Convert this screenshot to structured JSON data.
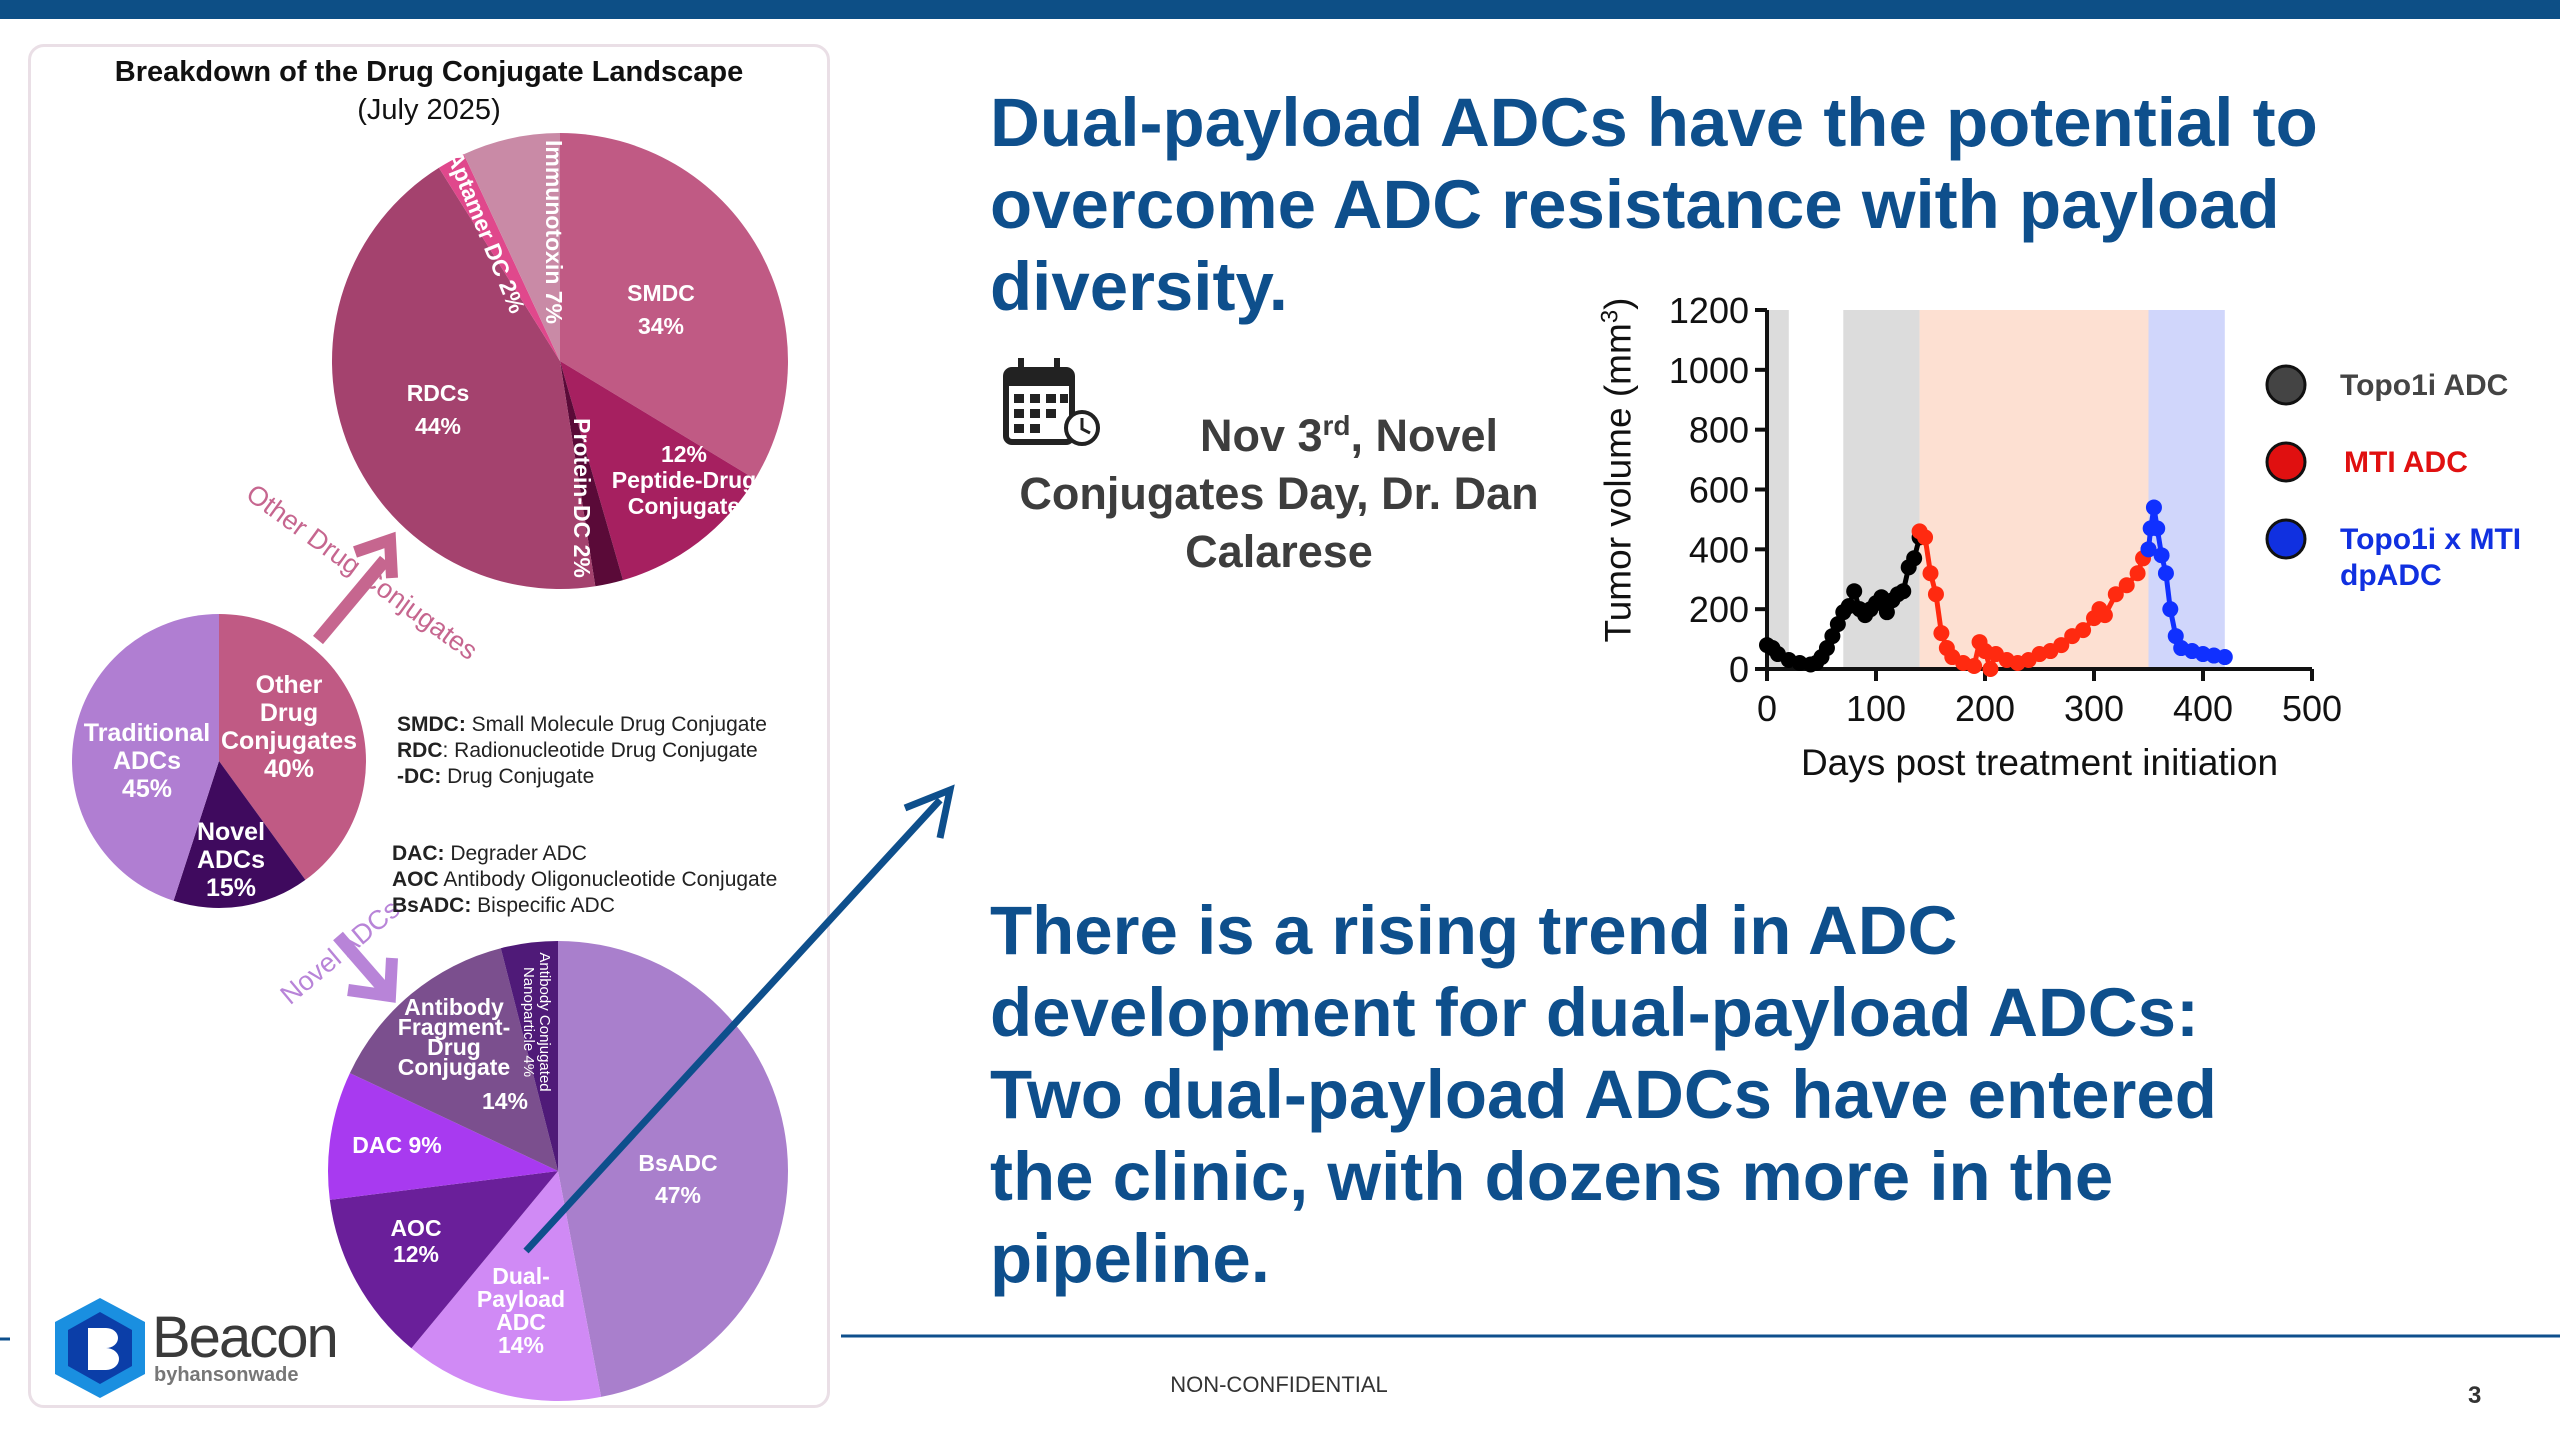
{
  "slide": {
    "headline_lines": [
      "Dual-payload ADCs have the potential to",
      "overcome ADC resistance with payload",
      "diversity."
    ],
    "body_lines": [
      "There is a rising trend in ADC",
      "development for dual-payload ADCs:",
      "Two dual-payload ADCs have entered",
      "the clinic, with dozens more in the",
      "pipeline."
    ],
    "event": {
      "date_prefix": "Nov 3",
      "date_sup": "rd",
      "date_suffix": ", Novel",
      "line2": "Conjugates Day, Dr. Dan",
      "line3": "Calarese",
      "icon": "calendar-clock-icon"
    },
    "footer": {
      "classification": "NON-CONFIDENTIAL",
      "page_number": "3"
    },
    "colors": {
      "accent": "#0e4f8c",
      "topbar": "#0d4f86"
    }
  },
  "infographic": {
    "title": "Breakdown of the Drug Conjugate Landscape",
    "subtitle": "(July 2025)",
    "arrow_labels": {
      "other": "Other Drug Conjugates",
      "novel": "Novel ADCs"
    },
    "glossary1": [
      {
        "term": "SMDC:",
        "def": " Small Molecule Drug Conjugate"
      },
      {
        "term": "RDC",
        "def": ": Radionucleotide Drug Conjugate"
      },
      {
        "term": "-DC:",
        "def": " Drug Conjugate"
      }
    ],
    "glossary2": [
      {
        "term": "DAC:",
        "def": " Degrader ADC"
      },
      {
        "term": "AOC",
        "def": " Antibody Oligonucleotide Conjugate"
      },
      {
        "term": "BsADC:",
        "def": " Bispecific ADC"
      }
    ],
    "logo": {
      "name": "Beacon",
      "tagline": "byhansonwade"
    },
    "labels": {
      "smdc": [
        "SMDC",
        "34%"
      ],
      "rdc": [
        "RDCs",
        "44%"
      ],
      "pdc": [
        "12%",
        "Peptide-Drug",
        "Conjugate"
      ],
      "protein": "Protein-DC 2%",
      "aptamer": "Aptamer DC 2%",
      "immuno": "Immunotoxin 7%",
      "other": [
        "Other",
        "Drug",
        "Conjugates",
        "40%"
      ],
      "trad": [
        "Traditional",
        "ADCs",
        "45%"
      ],
      "novel": [
        "Novel",
        "ADCs",
        "15%"
      ],
      "bsadc": [
        "BsADC",
        "47%"
      ],
      "dual": [
        "Dual-",
        "Payload",
        "ADC",
        "14%"
      ],
      "aoc": [
        "AOC",
        "12%"
      ],
      "dac": "DAC 9%",
      "afdc": [
        "Antibody",
        "Fragment-",
        "Drug",
        "Conjugate"
      ],
      "afdc_pct": "14%",
      "acn": [
        "Antibody Conjugated",
        "Nanoparticle 4%"
      ]
    }
  },
  "chart_data": [
    {
      "type": "pie",
      "name": "other-drug-conjugates",
      "slices": [
        {
          "label": "SMDC",
          "value": 34,
          "color": "#c05a84"
        },
        {
          "label": "Peptide-Drug Conjugate",
          "value": 12,
          "color": "#a62060"
        },
        {
          "label": "Protein-DC",
          "value": 2,
          "color": "#5a0a38"
        },
        {
          "label": "RDCs",
          "value": 44,
          "color": "#a4426e"
        },
        {
          "label": "Aptamer DC",
          "value": 2,
          "color": "#e0488c"
        },
        {
          "label": "Immunotoxin",
          "value": 7,
          "color": "#c98aa6"
        }
      ]
    },
    {
      "type": "pie",
      "name": "drug-conjugate-landscape",
      "slices": [
        {
          "label": "Other Drug Conjugates",
          "value": 40,
          "color": "#c05a84"
        },
        {
          "label": "Novel ADCs",
          "value": 15,
          "color": "#3f0a5e"
        },
        {
          "label": "Traditional ADCs",
          "value": 45,
          "color": "#b07ed2"
        }
      ]
    },
    {
      "type": "pie",
      "name": "novel-adcs",
      "slices": [
        {
          "label": "BsADC",
          "value": 47,
          "color": "#a97fcc"
        },
        {
          "label": "Dual-Payload ADC",
          "value": 14,
          "color": "#d08af5"
        },
        {
          "label": "AOC",
          "value": 12,
          "color": "#6a1f9a"
        },
        {
          "label": "DAC",
          "value": 9,
          "color": "#a83af0"
        },
        {
          "label": "Antibody Fragment-Drug Conjugate",
          "value": 14,
          "color": "#7b4f8e"
        },
        {
          "label": "Antibody Conjugated Nanoparticle",
          "value": 4,
          "color": "#4f1a78"
        }
      ]
    },
    {
      "type": "line",
      "name": "tumor-volume",
      "xlabel": "Days post treatment initiation",
      "ylabel": "Tumor volume (mm",
      "ylabel_sup": "3",
      "ylabel_end": ")",
      "xlim": [
        0,
        500
      ],
      "ylim": [
        0,
        1200
      ],
      "xticks": [
        0,
        100,
        200,
        300,
        400,
        500
      ],
      "yticks": [
        0,
        200,
        400,
        600,
        800,
        1000,
        1200
      ],
      "bands": [
        {
          "from": 0,
          "to": 20,
          "color": "#dcdcdc"
        },
        {
          "from": 70,
          "to": 140,
          "color": "#dcdcdc"
        },
        {
          "from": 140,
          "to": 350,
          "color": "#fde0d2"
        },
        {
          "from": 350,
          "to": 420,
          "color": "#d0d6fb"
        }
      ],
      "series": [
        {
          "name": "Topo1i ADC",
          "color": "#000000",
          "legend_color": "#444444",
          "points": [
            [
              0,
              80
            ],
            [
              5,
              70
            ],
            [
              10,
              50
            ],
            [
              20,
              30
            ],
            [
              30,
              20
            ],
            [
              40,
              15
            ],
            [
              45,
              20
            ],
            [
              50,
              40
            ],
            [
              55,
              70
            ],
            [
              60,
              110
            ],
            [
              65,
              150
            ],
            [
              70,
              190
            ],
            [
              75,
              210
            ],
            [
              80,
              260
            ],
            [
              85,
              200
            ],
            [
              90,
              180
            ],
            [
              95,
              200
            ],
            [
              100,
              220
            ],
            [
              105,
              240
            ],
            [
              110,
              190
            ],
            [
              115,
              230
            ],
            [
              120,
              250
            ],
            [
              125,
              260
            ],
            [
              130,
              340
            ],
            [
              135,
              370
            ],
            [
              140,
              440
            ]
          ]
        },
        {
          "name": "MTI ADC",
          "color": "#ff2a10",
          "legend_color": "#e01010",
          "points": [
            [
              140,
              460
            ],
            [
              145,
              440
            ],
            [
              150,
              320
            ],
            [
              155,
              250
            ],
            [
              160,
              120
            ],
            [
              165,
              70
            ],
            [
              170,
              40
            ],
            [
              180,
              20
            ],
            [
              190,
              10
            ],
            [
              195,
              90
            ],
            [
              200,
              60
            ],
            [
              205,
              0
            ],
            [
              210,
              50
            ],
            [
              220,
              30
            ],
            [
              230,
              20
            ],
            [
              240,
              30
            ],
            [
              250,
              50
            ],
            [
              260,
              60
            ],
            [
              270,
              80
            ],
            [
              280,
              110
            ],
            [
              290,
              130
            ],
            [
              300,
              170
            ],
            [
              305,
              200
            ],
            [
              310,
              180
            ],
            [
              320,
              250
            ],
            [
              330,
              280
            ],
            [
              340,
              320
            ],
            [
              345,
              370
            ],
            [
              350,
              400
            ]
          ]
        },
        {
          "name": "Topo1i x MTI dpADC",
          "color": "#1030ff",
          "legend_color": "#1030e0",
          "points": [
            [
              350,
              400
            ],
            [
              352,
              470
            ],
            [
              355,
              540
            ],
            [
              358,
              470
            ],
            [
              362,
              380
            ],
            [
              366,
              320
            ],
            [
              370,
              200
            ],
            [
              375,
              110
            ],
            [
              380,
              70
            ],
            [
              390,
              60
            ],
            [
              400,
              50
            ],
            [
              410,
              45
            ],
            [
              420,
              40
            ]
          ]
        }
      ]
    }
  ]
}
